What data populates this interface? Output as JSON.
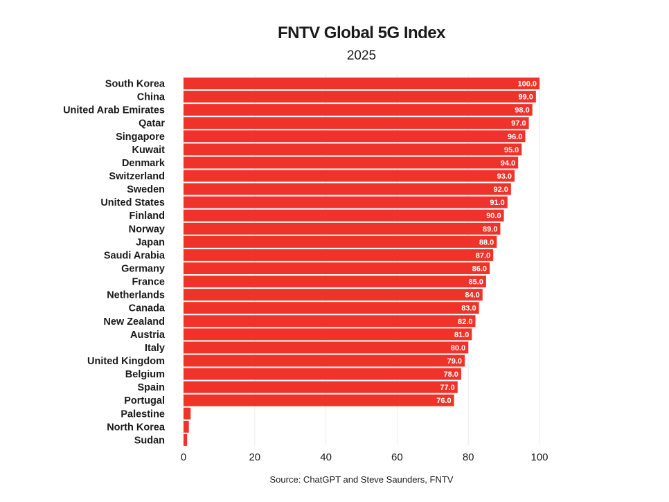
{
  "chart_data": {
    "type": "bar",
    "orientation": "horizontal",
    "title": "FNTV Global 5G Index",
    "subtitle": "2025",
    "source": "Source: ChatGPT and Steve Saunders, FNTV",
    "xlim": [
      0,
      100
    ],
    "xticks": [
      0,
      20,
      40,
      60,
      80,
      100
    ],
    "grid": true,
    "bar_color": "#f0332a",
    "categories": [
      "South Korea",
      "China",
      "United Arab Emirates",
      "Qatar",
      "Singapore",
      "Kuwait",
      "Denmark",
      "Switzerland",
      "Sweden",
      "United States",
      "Finland",
      "Norway",
      "Japan",
      "Saudi Arabia",
      "Germany",
      "France",
      "Netherlands",
      "Canada",
      "New Zealand",
      "Austria",
      "Italy",
      "United Kingdom",
      "Belgium",
      "Spain",
      "Portugal",
      "Palestine",
      "North Korea",
      "Sudan"
    ],
    "values": [
      100,
      99,
      98,
      97,
      96,
      95,
      94,
      93,
      92,
      91,
      90,
      89,
      88,
      87,
      86,
      85,
      84,
      83,
      82,
      81,
      80,
      79,
      78,
      77,
      76,
      2,
      1.5,
      1
    ],
    "data_labels": [
      "100.0",
      "99.0",
      "98.0",
      "97.0",
      "96.0",
      "95.0",
      "94.0",
      "93.0",
      "92.0",
      "91.0",
      "90.0",
      "89.0",
      "88.0",
      "87.0",
      "86.0",
      "85.0",
      "84.0",
      "83.0",
      "82.0",
      "81.0",
      "80.0",
      "79.0",
      "78.0",
      "77.0",
      "76.0",
      "",
      "",
      ""
    ]
  }
}
